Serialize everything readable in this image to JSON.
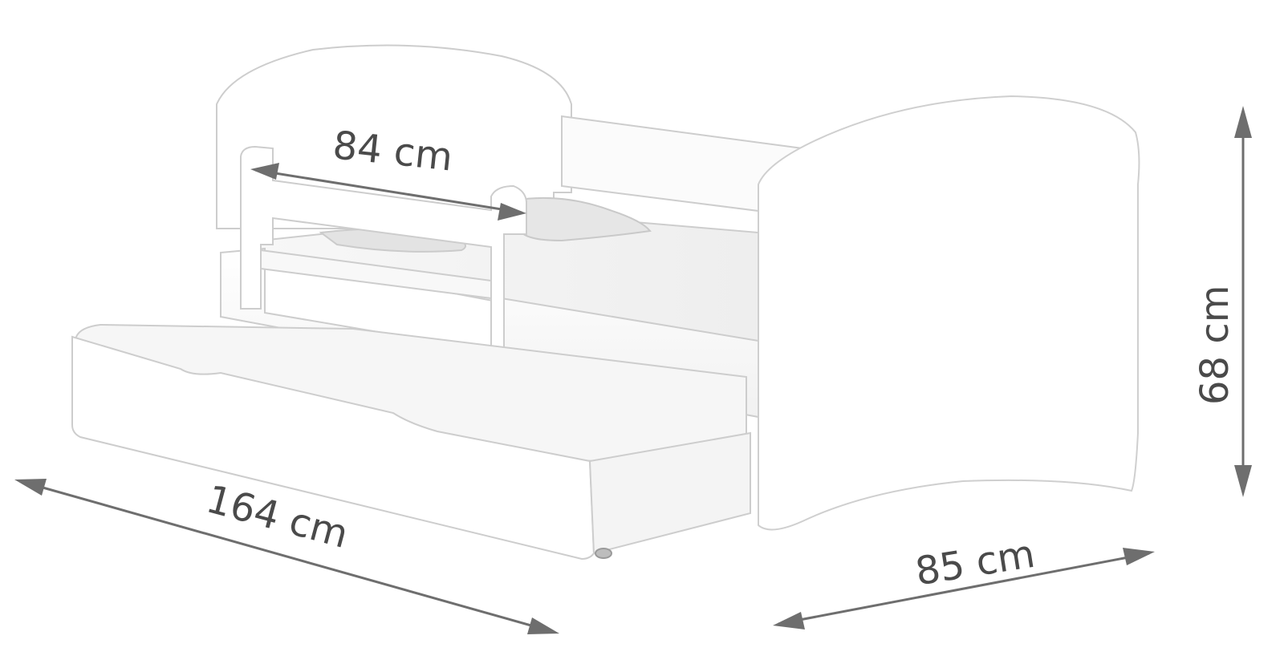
{
  "dimensions": {
    "width_inner": "84 cm",
    "length": "164 cm",
    "depth": "85 cm",
    "height": "68 cm"
  },
  "colors": {
    "arrow": "#6e6e6e",
    "text": "#4a4a4a",
    "furniture_edge": "#cfcfcf",
    "furniture_fill": "#ffffff",
    "shadow": "#ececec"
  }
}
